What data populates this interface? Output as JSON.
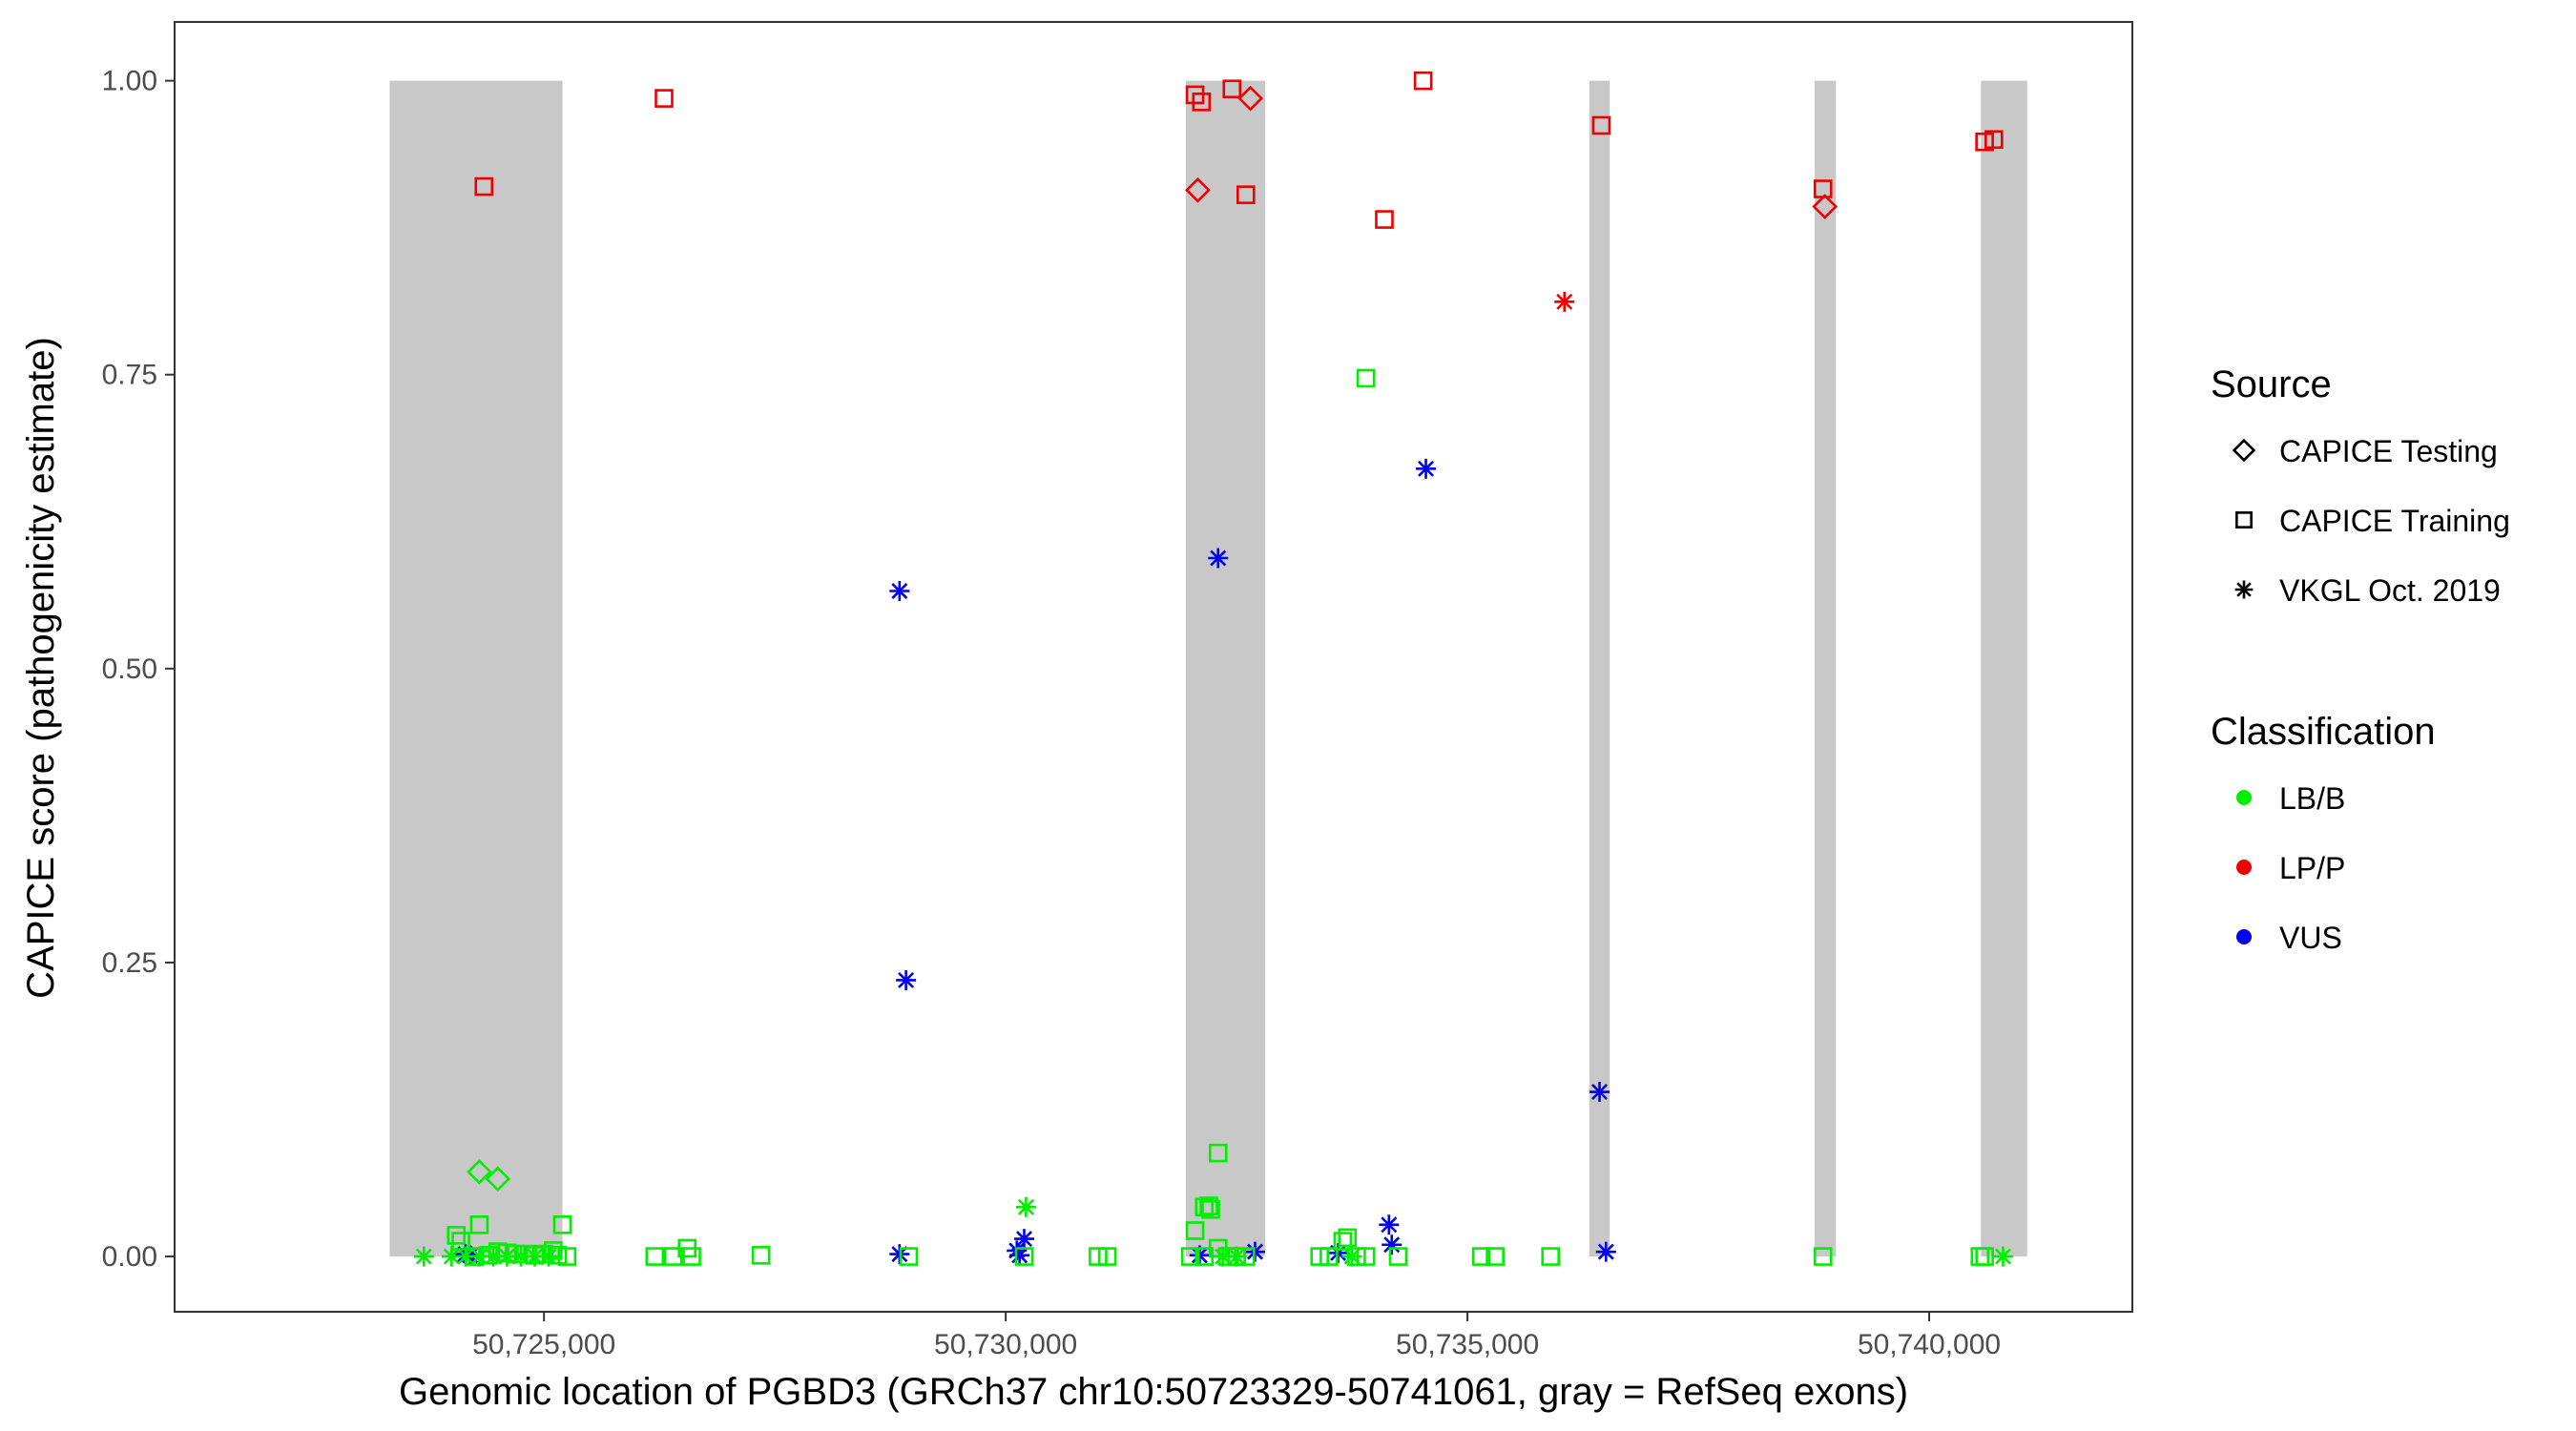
{
  "chart_data": {
    "type": "scatter",
    "title": "",
    "xlabel": "Genomic location of PGBD3 (GRCh37 chr10:50723329-50741061, gray = RefSeq exons)",
    "ylabel": "CAPICE score (pathogenicity estimate)",
    "xlim": [
      50721000,
      50742200
    ],
    "ylim": [
      -0.047,
      1.05
    ],
    "x_ticks": [
      50725000,
      50730000,
      50735000,
      50740000
    ],
    "x_tick_labels": [
      "50,725,000",
      "50,730,000",
      "50,735,000",
      "50,740,000"
    ],
    "y_ticks": [
      0.0,
      0.25,
      0.5,
      0.75,
      1.0
    ],
    "y_tick_labels": [
      "0.00",
      "0.25",
      "0.50",
      "0.75",
      "1.00"
    ],
    "grid": false,
    "legend_position": "right",
    "exons": [
      [
        50723329,
        50725200
      ],
      [
        50731950,
        50732810
      ],
      [
        50736320,
        50736540
      ],
      [
        50738760,
        50738990
      ],
      [
        50740560,
        50741061
      ]
    ],
    "legend": {
      "source_title": "Source",
      "source_items": [
        {
          "label": "CAPICE Testing",
          "shape": "diamond"
        },
        {
          "label": "CAPICE Training",
          "shape": "square"
        },
        {
          "label": "VKGL Oct. 2019",
          "shape": "star"
        }
      ],
      "class_title": "Classification",
      "class_items": [
        {
          "label": "LB/B",
          "color": "#00ee00"
        },
        {
          "label": "LP/P",
          "color": "#ee0000"
        },
        {
          "label": "VUS",
          "color": "#0000ee"
        }
      ]
    },
    "series": [
      {
        "source": "CAPICE Training",
        "classification": "LP/P",
        "x": [
          50724350,
          50726300,
          50732050,
          50732120,
          50732450,
          50732600,
          50734100,
          50734520,
          50736450,
          50738850,
          50740600,
          50740700
        ],
        "y": [
          0.91,
          0.985,
          0.988,
          0.982,
          0.993,
          0.903,
          0.882,
          1.0,
          0.962,
          0.908,
          0.948,
          0.95
        ]
      },
      {
        "source": "CAPICE Testing",
        "classification": "LP/P",
        "x": [
          50732080,
          50732650,
          50738870
        ],
        "y": [
          0.907,
          0.985,
          0.893
        ]
      },
      {
        "source": "VKGL Oct. 2019",
        "classification": "LP/P",
        "x": [
          50736050
        ],
        "y": [
          0.812
        ]
      },
      {
        "source": "VKGL Oct. 2019",
        "classification": "VUS",
        "x": [
          50728850,
          50728920,
          50732300,
          50734550,
          50736430,
          50724150,
          50724200,
          50728850,
          50730120,
          50730200,
          50730150,
          50732100,
          50732700,
          50733600,
          50734150,
          50734180,
          50736500
        ],
        "y": [
          0.566,
          0.235,
          0.594,
          0.67,
          0.14,
          0.002,
          0.001,
          0.002,
          0.005,
          0.015,
          0.001,
          0.001,
          0.004,
          0.003,
          0.027,
          0.01,
          0.004
        ]
      },
      {
        "source": "CAPICE Training",
        "classification": "LB/B",
        "x": [
          50733900,
          50732300,
          50732150,
          50732200,
          50732220,
          50732050,
          50725200,
          50724300,
          50724050,
          50724100,
          50726550,
          50732300,
          50724500,
          50724600,
          50724700,
          50724800,
          50724900,
          50725000,
          50725100,
          50725150,
          50725250,
          50724250,
          50724400,
          50726200,
          50726400,
          50726600,
          50727350,
          50728950,
          50730200,
          50731000,
          50731100,
          50732000,
          50732150,
          50732400,
          50732500,
          50732600,
          50733400,
          50733500,
          50733650,
          50733700,
          50733800,
          50733900,
          50734250,
          50735150,
          50735300,
          50735900,
          50738850,
          50740550,
          50740600
        ],
        "y": [
          0.747,
          0.088,
          0.042,
          0.043,
          0.04,
          0.022,
          0.027,
          0.027,
          0.018,
          0.013,
          0.007,
          0.007,
          0.004,
          0.003,
          0.002,
          0.002,
          0.001,
          0.002,
          0.005,
          0.001,
          0.0,
          0.0,
          0.001,
          0.0,
          0.0,
          0.0,
          0.001,
          0.0,
          0.0,
          0.0,
          0.0,
          0.0,
          0.0,
          0.0,
          0.0,
          0.0,
          0.0,
          0.0,
          0.013,
          0.016,
          0.0,
          0.0,
          0.0,
          0.0,
          0.0,
          0.0,
          0.0,
          0.0,
          0.0
        ]
      },
      {
        "source": "CAPICE Testing",
        "classification": "LB/B",
        "x": [
          50724300,
          50724500
        ],
        "y": [
          0.072,
          0.066
        ]
      },
      {
        "source": "VKGL Oct. 2019",
        "classification": "LB/B",
        "x": [
          50730220,
          50723700,
          50724000,
          50724150,
          50724300,
          50724450,
          50724600,
          50724750,
          50724900,
          50725050,
          50732350,
          50732500,
          50733750,
          50740800
        ],
        "y": [
          0.042,
          0.0,
          0.0,
          0.0,
          0.0,
          0.0,
          0.0,
          0.0,
          0.0,
          0.0,
          0.0,
          0.0,
          0.0,
          0.0
        ]
      }
    ]
  }
}
